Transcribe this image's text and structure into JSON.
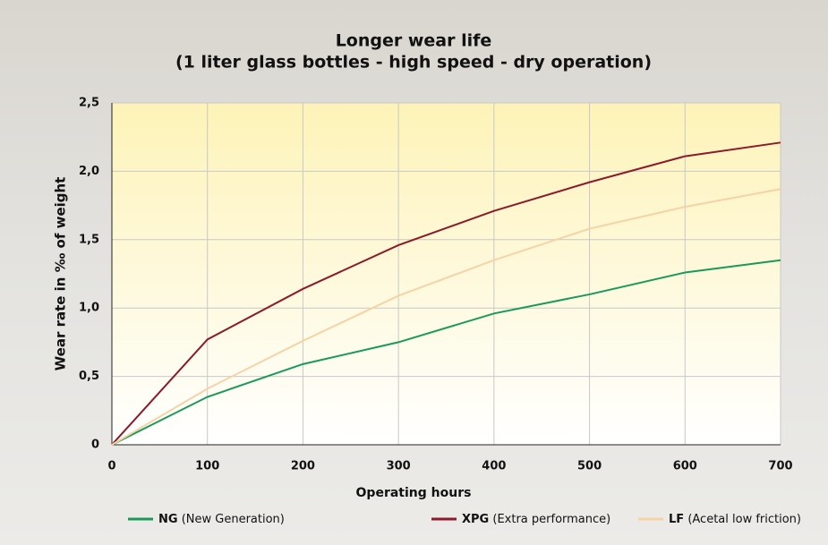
{
  "chart_data": {
    "type": "line",
    "title": "Longer wear life",
    "subtitle": "(1 liter glass bottles - high speed - dry operation)",
    "x_label": "Operating hours",
    "y_label": "Wear rate in ‰ of weight",
    "x": [
      0,
      100,
      200,
      300,
      400,
      500,
      600,
      700
    ],
    "series": [
      {
        "name": "NG",
        "legend_label": "(New Generation)",
        "color": "#1a9a5a",
        "values": [
          0,
          0.35,
          0.59,
          0.75,
          0.96,
          1.1,
          1.26,
          1.35
        ]
      },
      {
        "name": "XPG",
        "legend_label": "(Extra performance)",
        "color": "#8b1a2b",
        "values": [
          0,
          0.77,
          1.14,
          1.46,
          1.71,
          1.92,
          2.11,
          2.21
        ]
      },
      {
        "name": "LF",
        "legend_label": "(Acetal low friction)",
        "color": "#f5d3a6",
        "values": [
          0,
          0.41,
          0.76,
          1.09,
          1.35,
          1.58,
          1.74,
          1.87
        ]
      }
    ],
    "xlim": [
      0,
      700
    ],
    "xticks": [
      0,
      100,
      200,
      300,
      400,
      500,
      600,
      700
    ],
    "ylim": [
      0,
      2.5
    ],
    "yticks": [
      0,
      {
        "value": 0.5,
        "label": "0,5"
      },
      {
        "value": 1,
        "label": "1,0"
      },
      {
        "value": 1.5,
        "label": "1,5"
      },
      {
        "value": 2,
        "label": "2,0"
      },
      {
        "value": 2.5,
        "label": "2,5"
      }
    ],
    "grid": true,
    "legend": "bottom"
  }
}
